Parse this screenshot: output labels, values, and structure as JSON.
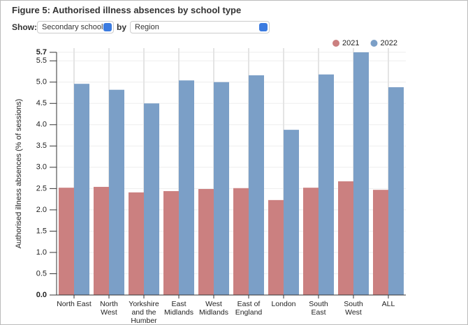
{
  "controls": {
    "show_label": "Show:",
    "school_select": "Secondary schools",
    "by_label": "by",
    "group_select": "Region"
  },
  "chart_data": {
    "type": "bar",
    "title": "Figure 5: Authorised illness absences by school type",
    "y_label": "Authorised illness absences (% of sessions)",
    "categories": [
      "North East",
      "North West",
      "Yorkshire and the Humber",
      "East Midlands",
      "West Midlands",
      "East of England",
      "London",
      "South East",
      "South West",
      "ALL"
    ],
    "series": [
      {
        "name": "2021",
        "color": "#cb8080",
        "values": [
          2.52,
          2.54,
          2.41,
          2.44,
          2.49,
          2.51,
          2.23,
          2.52,
          2.67,
          2.47
        ]
      },
      {
        "name": "2022",
        "color": "#7b9fc7",
        "values": [
          4.96,
          4.82,
          4.5,
          5.04,
          5.0,
          5.16,
          3.88,
          5.18,
          5.7,
          4.88
        ]
      }
    ],
    "ylim": [
      0,
      5.7
    ],
    "yticks": [
      {
        "value": 0,
        "label": "0.0"
      },
      0.5,
      {
        "value": 1,
        "label": "1.0"
      },
      1.5,
      {
        "value": 2,
        "label": "2.0"
      },
      2.5,
      {
        "value": 3,
        "label": "3.0"
      },
      3.5,
      {
        "value": 4,
        "label": "4.0"
      },
      4.5,
      {
        "value": 5,
        "label": "5.0"
      },
      5.5,
      5.7
    ],
    "grid": true,
    "legend": "top-right"
  }
}
